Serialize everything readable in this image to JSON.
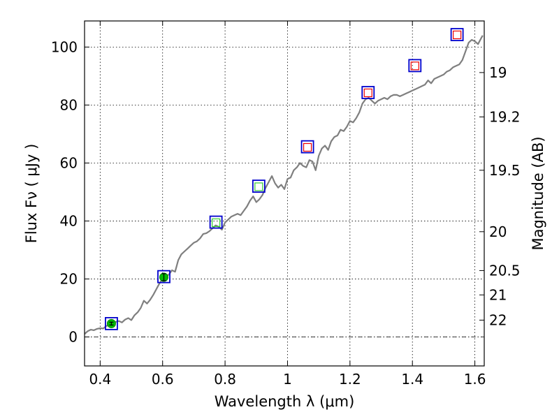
{
  "chart_data": {
    "type": "line",
    "title": "",
    "xlabel": "Wavelength  λ (μm)",
    "ylabel": "Flux  Fν  ( μJy )",
    "y2label": "Magnitude (AB)",
    "xlim": [
      0.35,
      1.63
    ],
    "ylim": [
      -10,
      109
    ],
    "grid": true,
    "x_ticks": [
      0.4,
      0.6,
      0.8,
      1.0,
      1.2,
      1.4,
      1.6
    ],
    "x_tick_labels": [
      "0.4",
      "0.6",
      "0.8",
      "1",
      "1.2",
      "1.4",
      "1.6"
    ],
    "y_ticks": [
      0,
      20,
      40,
      60,
      80,
      100
    ],
    "y_tick_labels": [
      "0",
      "20",
      "40",
      "60",
      "80",
      "100"
    ],
    "y2_ticks": [
      {
        "label": "19",
        "flux": 91.2
      },
      {
        "label": "19.2",
        "flux": 75.9
      },
      {
        "label": "19.5",
        "flux": 57.5
      },
      {
        "label": "20",
        "flux": 36.3
      },
      {
        "label": "20.5",
        "flux": 22.9
      },
      {
        "label": "21",
        "flux": 14.5
      },
      {
        "label": "22",
        "flux": 5.8
      }
    ],
    "series": [
      {
        "kind": "spectrum",
        "color": "#7f7f7f",
        "points": [
          [
            0.35,
            1.0
          ],
          [
            0.36,
            2.0
          ],
          [
            0.37,
            2.5
          ],
          [
            0.38,
            2.3
          ],
          [
            0.39,
            2.8
          ],
          [
            0.4,
            3.0
          ],
          [
            0.41,
            2.9
          ],
          [
            0.42,
            3.8
          ],
          [
            0.43,
            4.2
          ],
          [
            0.44,
            4.5
          ],
          [
            0.45,
            5.2
          ],
          [
            0.46,
            5.5
          ],
          [
            0.47,
            5.0
          ],
          [
            0.48,
            6.0
          ],
          [
            0.49,
            6.5
          ],
          [
            0.5,
            5.8
          ],
          [
            0.51,
            7.5
          ],
          [
            0.52,
            8.5
          ],
          [
            0.53,
            10.0
          ],
          [
            0.54,
            12.5
          ],
          [
            0.55,
            11.5
          ],
          [
            0.56,
            12.8
          ],
          [
            0.57,
            14.5
          ],
          [
            0.58,
            16.5
          ],
          [
            0.59,
            18.5
          ],
          [
            0.6,
            20.0
          ],
          [
            0.61,
            21.0
          ],
          [
            0.62,
            21.5
          ],
          [
            0.63,
            23.0
          ],
          [
            0.64,
            22.5
          ],
          [
            0.65,
            26.5
          ],
          [
            0.66,
            28.5
          ],
          [
            0.67,
            29.5
          ],
          [
            0.68,
            30.5
          ],
          [
            0.69,
            31.5
          ],
          [
            0.7,
            32.5
          ],
          [
            0.71,
            33.0
          ],
          [
            0.72,
            34.0
          ],
          [
            0.73,
            35.5
          ],
          [
            0.74,
            35.8
          ],
          [
            0.75,
            36.5
          ],
          [
            0.76,
            37.5
          ],
          [
            0.77,
            38.5
          ],
          [
            0.78,
            38.0
          ],
          [
            0.79,
            37.0
          ],
          [
            0.8,
            39.5
          ],
          [
            0.81,
            40.5
          ],
          [
            0.82,
            41.5
          ],
          [
            0.83,
            42.0
          ],
          [
            0.84,
            42.5
          ],
          [
            0.85,
            42.0
          ],
          [
            0.86,
            43.5
          ],
          [
            0.87,
            45.0
          ],
          [
            0.88,
            47.0
          ],
          [
            0.89,
            48.5
          ],
          [
            0.9,
            46.5
          ],
          [
            0.91,
            47.5
          ],
          [
            0.92,
            49.0
          ],
          [
            0.93,
            51.5
          ],
          [
            0.94,
            53.5
          ],
          [
            0.95,
            55.5
          ],
          [
            0.96,
            53.0
          ],
          [
            0.97,
            51.5
          ],
          [
            0.98,
            52.5
          ],
          [
            0.99,
            51.0
          ],
          [
            1.0,
            54.5
          ],
          [
            1.01,
            55.0
          ],
          [
            1.02,
            57.5
          ],
          [
            1.03,
            58.5
          ],
          [
            1.04,
            60.0
          ],
          [
            1.05,
            59.0
          ],
          [
            1.06,
            58.5
          ],
          [
            1.07,
            61.0
          ],
          [
            1.08,
            60.5
          ],
          [
            1.09,
            57.5
          ],
          [
            1.1,
            62.5
          ],
          [
            1.11,
            65.0
          ],
          [
            1.12,
            66.0
          ],
          [
            1.13,
            64.5
          ],
          [
            1.14,
            67.5
          ],
          [
            1.15,
            69.0
          ],
          [
            1.16,
            69.5
          ],
          [
            1.17,
            71.5
          ],
          [
            1.18,
            71.0
          ],
          [
            1.19,
            72.5
          ],
          [
            1.2,
            74.5
          ],
          [
            1.21,
            74.0
          ],
          [
            1.22,
            75.5
          ],
          [
            1.23,
            77.5
          ],
          [
            1.24,
            80.5
          ],
          [
            1.25,
            82.0
          ],
          [
            1.26,
            82.5
          ],
          [
            1.27,
            81.5
          ],
          [
            1.28,
            80.5
          ],
          [
            1.29,
            81.5
          ],
          [
            1.3,
            82.0
          ],
          [
            1.31,
            82.5
          ],
          [
            1.32,
            82.0
          ],
          [
            1.33,
            83.0
          ],
          [
            1.34,
            83.5
          ],
          [
            1.35,
            83.5
          ],
          [
            1.36,
            83.0
          ],
          [
            1.37,
            83.5
          ],
          [
            1.38,
            84.0
          ],
          [
            1.39,
            84.5
          ],
          [
            1.4,
            85.0
          ],
          [
            1.41,
            85.5
          ],
          [
            1.42,
            86.0
          ],
          [
            1.43,
            86.5
          ],
          [
            1.44,
            87.0
          ],
          [
            1.45,
            88.5
          ],
          [
            1.46,
            87.5
          ],
          [
            1.47,
            89.0
          ],
          [
            1.48,
            89.5
          ],
          [
            1.49,
            90.0
          ],
          [
            1.5,
            90.5
          ],
          [
            1.51,
            91.5
          ],
          [
            1.52,
            92.0
          ],
          [
            1.53,
            93.0
          ],
          [
            1.54,
            93.5
          ],
          [
            1.55,
            94.0
          ],
          [
            1.56,
            95.5
          ],
          [
            1.57,
            98.5
          ],
          [
            1.58,
            101.5
          ],
          [
            1.59,
            102.5
          ],
          [
            1.6,
            102.0
          ],
          [
            1.61,
            101.0
          ],
          [
            1.62,
            103.0
          ],
          [
            1.625,
            104.0
          ]
        ]
      },
      {
        "kind": "model_photometry",
        "marker": "square",
        "color": "#0000cc",
        "points": [
          [
            0.436,
            4.6
          ],
          [
            0.604,
            20.8
          ],
          [
            0.771,
            39.6
          ],
          [
            0.908,
            52.0
          ],
          [
            1.064,
            65.6
          ],
          [
            1.258,
            84.3
          ],
          [
            1.408,
            93.6
          ],
          [
            1.543,
            104.3
          ]
        ]
      },
      {
        "kind": "observed_photometry",
        "marker": "mixed",
        "points": [
          {
            "x": 0.436,
            "y": 4.6,
            "marker": "circle",
            "color": "#00bb00",
            "err": 0.5
          },
          {
            "x": 0.604,
            "y": 20.6,
            "marker": "circle",
            "color": "#00bb00",
            "err": 1.2
          },
          {
            "x": 0.771,
            "y": 39.4,
            "marker": "open-square",
            "color": "#33cc33"
          },
          {
            "x": 0.908,
            "y": 51.8,
            "marker": "open-square",
            "color": "#33cc33"
          },
          {
            "x": 1.064,
            "y": 65.4,
            "marker": "open-square",
            "color": "#ee0000"
          },
          {
            "x": 1.258,
            "y": 84.2,
            "marker": "open-square",
            "color": "#ee0000"
          },
          {
            "x": 1.408,
            "y": 93.5,
            "marker": "open-square",
            "color": "#ee0000"
          },
          {
            "x": 1.543,
            "y": 104.2,
            "marker": "open-square",
            "color": "#ee0000"
          }
        ]
      }
    ]
  }
}
